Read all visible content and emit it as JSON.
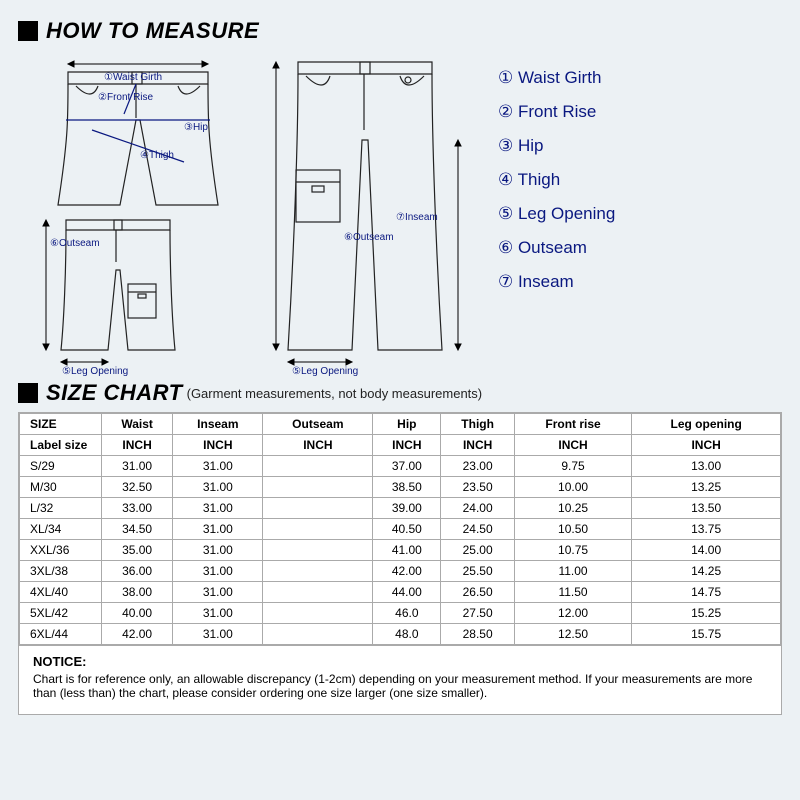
{
  "headers": {
    "measure": "HOW TO MEASURE",
    "chart": "SIZE CHART",
    "chart_sub": "(Garment measurements, not body measurements)"
  },
  "legend": [
    "① Waist Girth",
    "② Front Rise",
    "③ Hip",
    "④ Thigh",
    "⑤ Leg Opening",
    "⑥ Outseam",
    "⑦ Inseam"
  ],
  "diagram_labels": {
    "waist": "①Waist Girth",
    "front_rise": "②Front Rise",
    "hip": "③Hip",
    "thigh": "④Thigh",
    "leg_opening": "⑤Leg Opening",
    "outseam": "⑥Outseam",
    "inseam": "⑦Inseam"
  },
  "table": {
    "head1": [
      "SIZE",
      "Waist",
      "Inseam",
      "Outseam",
      "Hip",
      "Thigh",
      "Front rise",
      "Leg opening"
    ],
    "head2": [
      "Label size",
      "INCH",
      "INCH",
      "INCH",
      "INCH",
      "INCH",
      "INCH",
      "INCH"
    ],
    "rows": [
      [
        "S/29",
        "31.00",
        "31.00",
        "",
        "37.00",
        "23.00",
        "9.75",
        "13.00"
      ],
      [
        "M/30",
        "32.50",
        "31.00",
        "",
        "38.50",
        "23.50",
        "10.00",
        "13.25"
      ],
      [
        "L/32",
        "33.00",
        "31.00",
        "",
        "39.00",
        "24.00",
        "10.25",
        "13.50"
      ],
      [
        "XL/34",
        "34.50",
        "31.00",
        "",
        "40.50",
        "24.50",
        "10.50",
        "13.75"
      ],
      [
        "XXL/36",
        "35.00",
        "31.00",
        "",
        "41.00",
        "25.00",
        "10.75",
        "14.00"
      ],
      [
        "3XL/38",
        "36.00",
        "31.00",
        "",
        "42.00",
        "25.50",
        "11.00",
        "14.25"
      ],
      [
        "4XL/40",
        "38.00",
        "31.00",
        "",
        "44.00",
        "26.50",
        "11.50",
        "14.75"
      ],
      [
        "5XL/42",
        "40.00",
        "31.00",
        "",
        "46.0",
        "27.50",
        "12.00",
        "15.25"
      ],
      [
        "6XL/44",
        "42.00",
        "31.00",
        "",
        "48.0",
        "28.50",
        "12.50",
        "15.75"
      ]
    ]
  },
  "notice": {
    "title": "NOTICE:",
    "body": "Chart is for reference only, an allowable discrepancy (1-2cm) depending on your measurement method. If your measurements are more than (less than) the chart, please consider ordering one size larger (one size smaller)."
  },
  "colors": {
    "accent": "#0a1880",
    "bg": "#ecf1f4",
    "border": "#aaaaaa"
  }
}
